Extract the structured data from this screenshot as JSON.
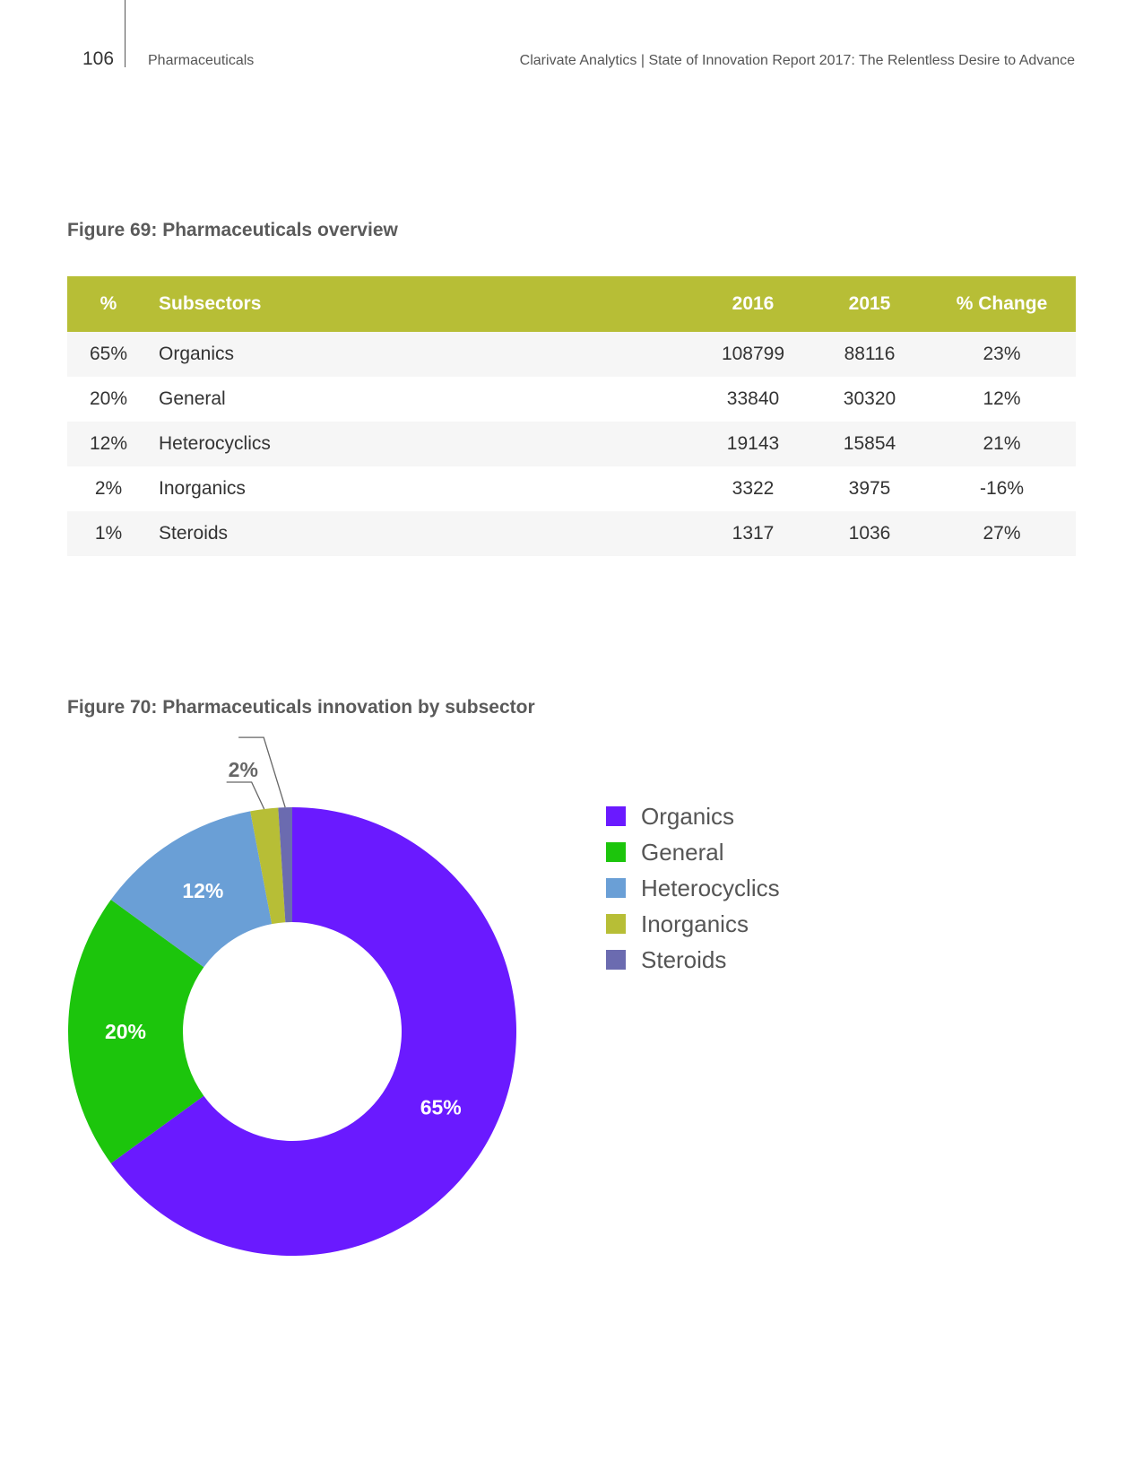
{
  "header": {
    "page_number": "106",
    "section": "Pharmaceuticals",
    "report_title": "Clarivate Analytics | State of Innovation Report 2017: The Relentless Desire to Advance"
  },
  "figure69": {
    "caption": "Figure 69: Pharmaceuticals overview",
    "columns": [
      "%",
      "Subsectors",
      "2016",
      "2015",
      "% Change"
    ],
    "header_color": "#b7be36"
  },
  "figure70": {
    "caption": "Figure 70: Pharmaceuticals innovation by subsector"
  },
  "chart_data": [
    {
      "type": "table",
      "columns": [
        "%",
        "Subsectors",
        "2016",
        "2015",
        "% Change"
      ],
      "rows": [
        [
          "65%",
          "Organics",
          "108799",
          "88116",
          "23%"
        ],
        [
          "20%",
          "General",
          "33840",
          "30320",
          "12%"
        ],
        [
          "12%",
          "Heterocyclics",
          "19143",
          "15854",
          "21%"
        ],
        [
          "2%",
          "Inorganics",
          "3322",
          "3975",
          "-16%"
        ],
        [
          "1%",
          "Steroids",
          "1317",
          "1036",
          "27%"
        ]
      ]
    },
    {
      "type": "pie",
      "donut": true,
      "categories": [
        "Organics",
        "General",
        "Heterocyclics",
        "Inorganics",
        "Steroids"
      ],
      "values": [
        65,
        20,
        12,
        2,
        1
      ],
      "labels": [
        "65%",
        "20%",
        "12%",
        "2%",
        "1%"
      ],
      "colors": [
        "#6a1aff",
        "#1cc50c",
        "#6a9fd6",
        "#b7be36",
        "#6b6bb0"
      ],
      "legend_position": "right"
    }
  ]
}
